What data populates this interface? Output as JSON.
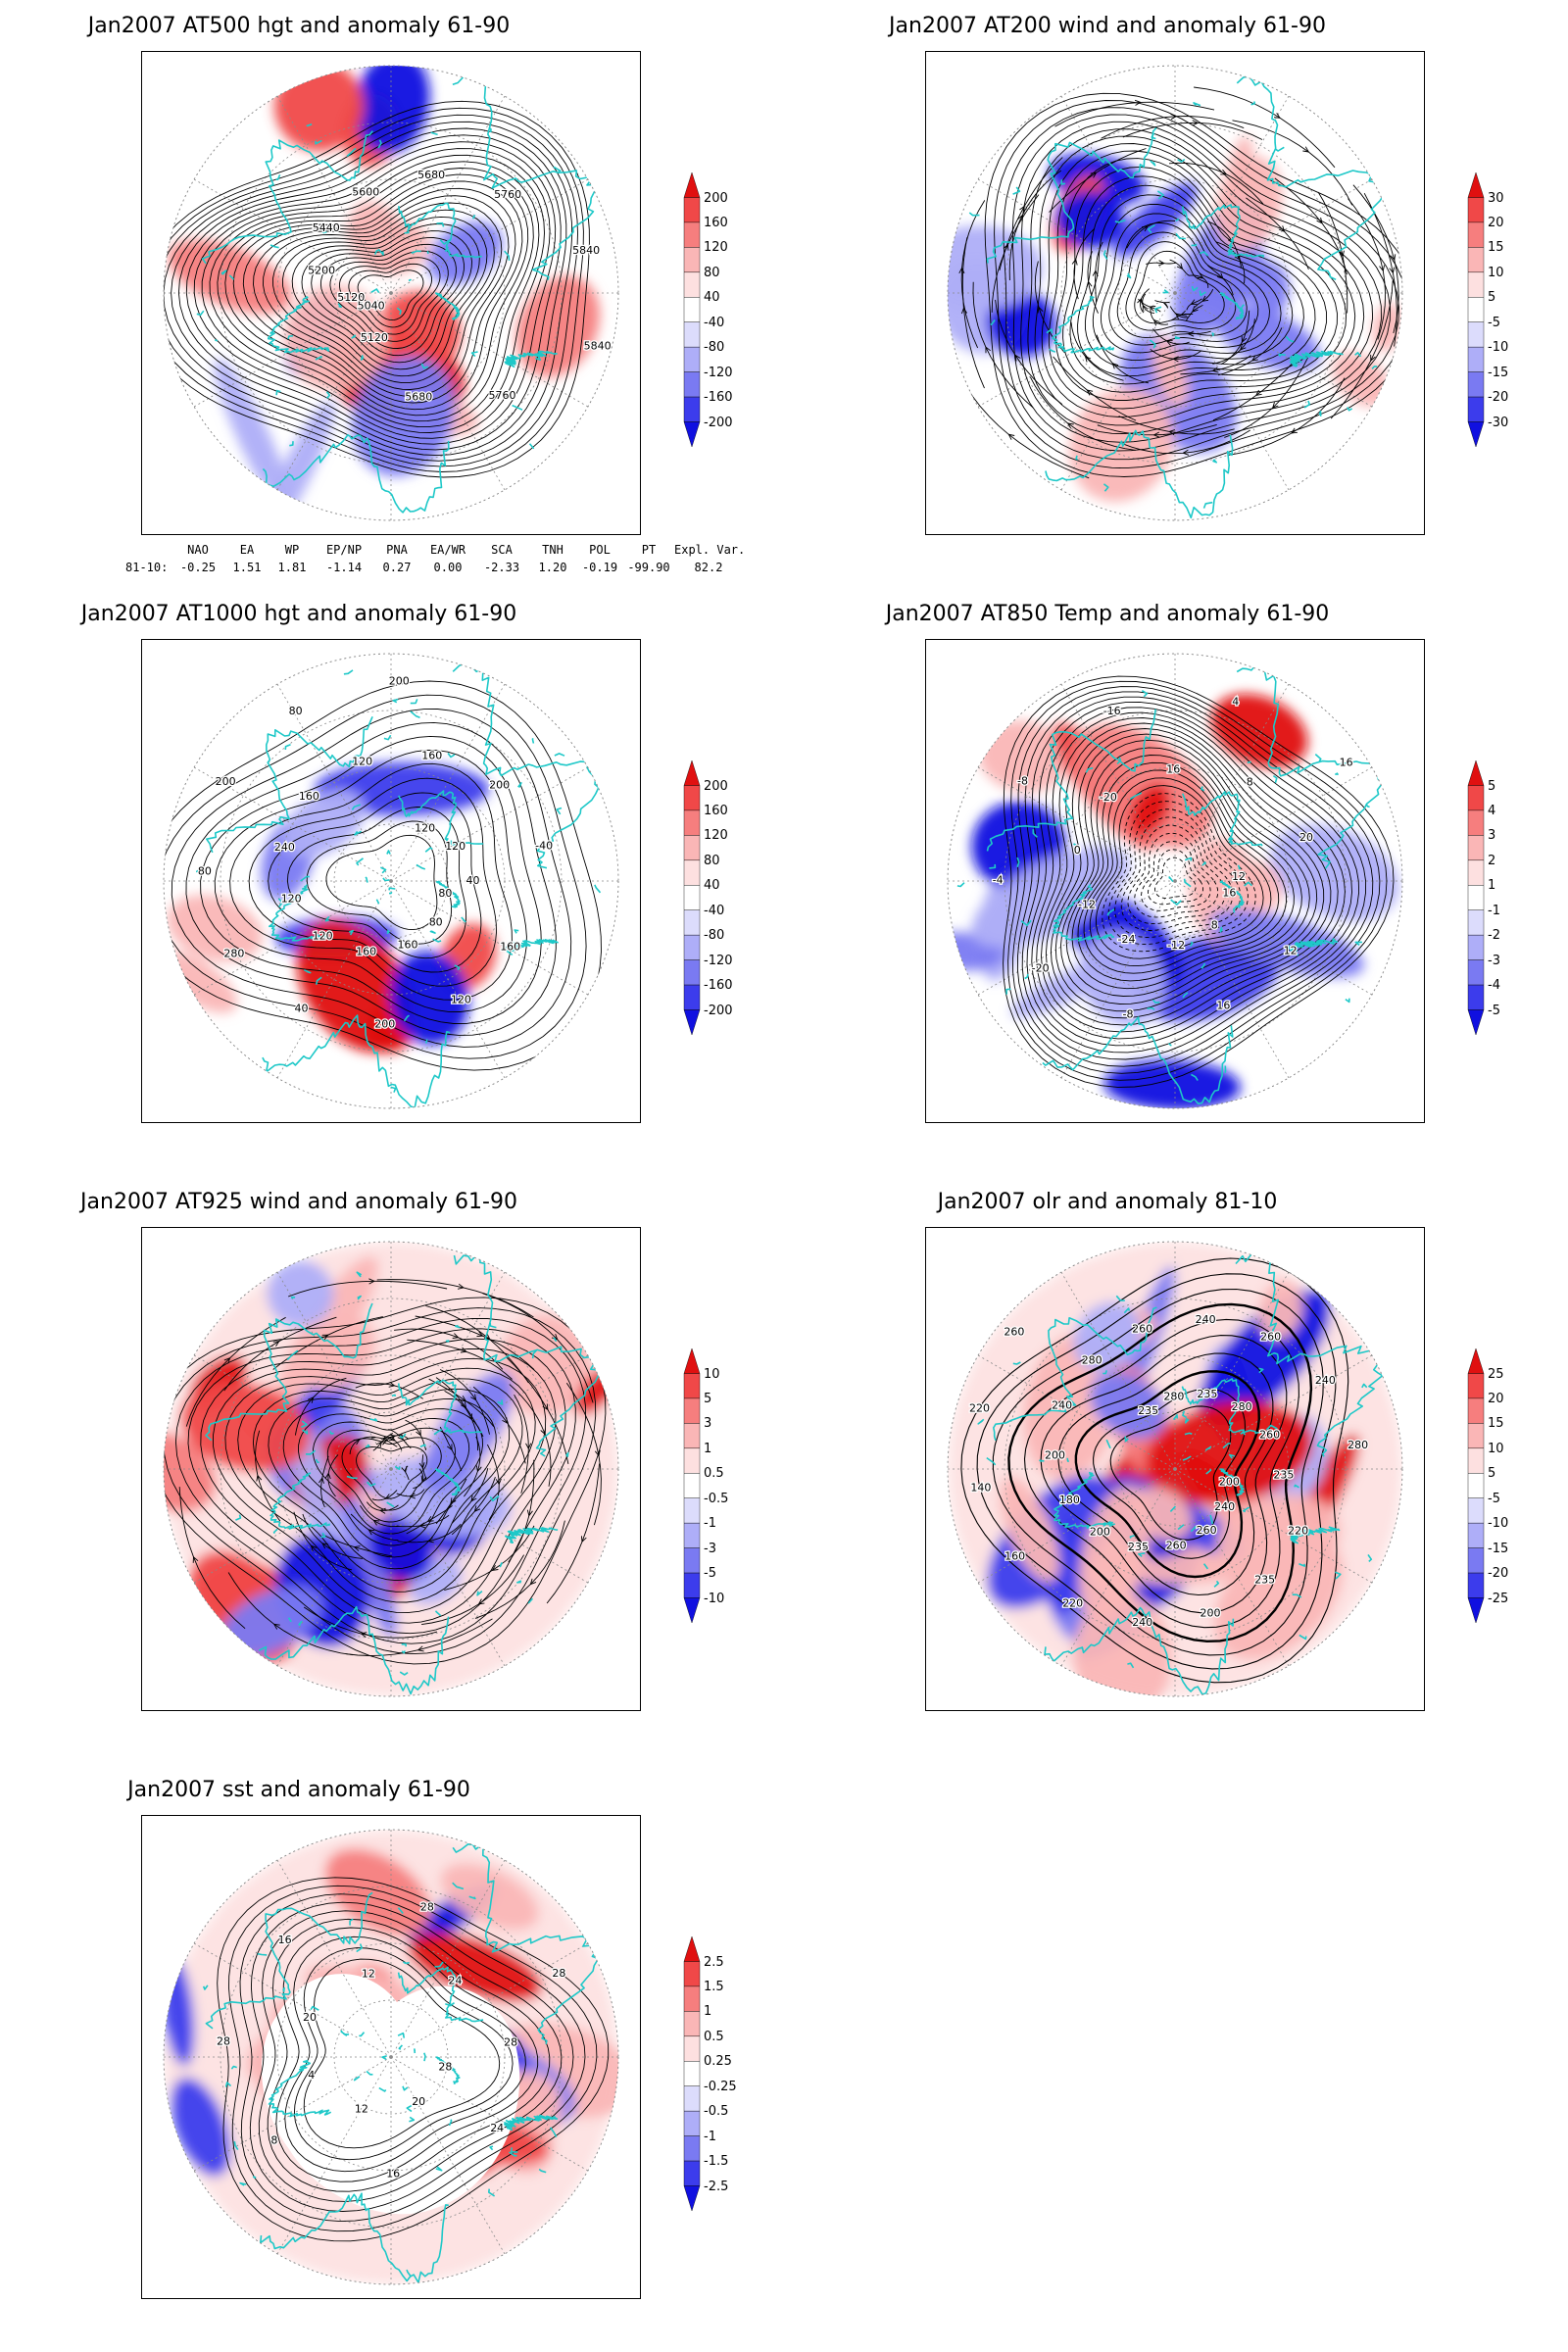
{
  "panels": [
    {
      "id": "at500",
      "title": "Jan2007 AT500 hgt and anomaly 61-90",
      "colorbar": [
        "200",
        "160",
        "120",
        "80",
        "40",
        "-40",
        "-80",
        "-120",
        "-160",
        "-200"
      ],
      "contour_labels": [
        "5840",
        "5760",
        "5680",
        "5120",
        "5040",
        "5120",
        "5200",
        "5440",
        "5600",
        "5680",
        "5760",
        "5840"
      ]
    },
    {
      "id": "at200",
      "title": "Jan2007 AT200 wind and anomaly 61-90",
      "colorbar": [
        "30",
        "20",
        "15",
        "10",
        "5",
        "-5",
        "-10",
        "-15",
        "-20",
        "-30"
      ],
      "contour_labels": []
    },
    {
      "id": "at1000",
      "title": "Jan2007 AT1000 hgt and anomaly 61-90",
      "colorbar": [
        "200",
        "160",
        "120",
        "80",
        "40",
        "-40",
        "-80",
        "-120",
        "-160",
        "-200"
      ],
      "contour_labels": [
        "80",
        "160",
        "80",
        "120",
        "160",
        "200",
        "160",
        "40",
        "120",
        "280",
        "120",
        "80",
        "240",
        "200",
        "160",
        "80",
        "120",
        "200",
        "160",
        "120",
        "200",
        "120",
        "-40",
        "40"
      ]
    },
    {
      "id": "at850",
      "title": "Jan2007 AT850 Temp and anomaly 61-90",
      "colorbar": [
        "5",
        "4",
        "3",
        "2",
        "1",
        "-1",
        "-2",
        "-3",
        "-4",
        "-5"
      ],
      "contour_labels": [
        "16",
        "12",
        "8",
        "16",
        "-12",
        "-8",
        "-24",
        "-20",
        "-12",
        "-4",
        "0",
        "-8",
        "-20",
        "-16",
        "16",
        "4",
        "8",
        "16",
        "20",
        "12"
      ]
    },
    {
      "id": "at925",
      "title": "Jan2007 AT925 wind and anomaly 61-90",
      "colorbar": [
        "10",
        "5",
        "3",
        "1",
        "0.5",
        "-0.5",
        "-1",
        "-3",
        "-5",
        "-10"
      ],
      "contour_labels": []
    },
    {
      "id": "olr",
      "title": "Jan2007 olr and anomaly 81-10",
      "colorbar": [
        "25",
        "20",
        "15",
        "10",
        "5",
        "-5",
        "-10",
        "-15",
        "-20",
        "-25"
      ],
      "contour_labels": [
        "200",
        "220",
        "240",
        "235",
        "260",
        "200",
        "260",
        "240",
        "235",
        "220",
        "200",
        "160",
        "180",
        "140",
        "200",
        "220",
        "240",
        "260",
        "280",
        "235",
        "260",
        "280",
        "240",
        "235",
        "260",
        "280",
        "240",
        "260",
        "280",
        "235"
      ]
    },
    {
      "id": "sst",
      "title": "Jan2007 sst and anomaly 61-90",
      "colorbar": [
        "2.5",
        "1.5",
        "1",
        "0.5",
        "0.25",
        "-0.25",
        "-0.5",
        "-1",
        "-1.5",
        "-2.5"
      ],
      "contour_labels": [
        "28",
        "24",
        "20",
        "16",
        "12",
        "8",
        "4",
        "28",
        "20",
        "16",
        "12",
        "28",
        "24",
        "28",
        "28"
      ]
    }
  ],
  "index_table": {
    "headers": [
      "NAO",
      "EA",
      "WP",
      "EP/NP",
      "PNA",
      "EA/WR",
      "SCA",
      "TNH",
      "POL",
      "PT",
      "Expl. Var."
    ],
    "row_label": "81-10:",
    "values": [
      "-0.25",
      "1.51",
      "1.81",
      "-1.14",
      "0.27",
      "0.00",
      "-2.33",
      "1.20",
      "-0.19",
      "-99.90",
      "82.2"
    ]
  },
  "colors": {
    "coast": "#1ec8c8",
    "contour": "#000000",
    "grid": "#8a8a8a",
    "scale": [
      "#e01010",
      "#f04848",
      "#f67e7e",
      "#fab6b6",
      "#fde0e0",
      "#ffffff",
      "#dcdcfc",
      "#aeaef8",
      "#7a7af2",
      "#3c3cec",
      "#1010e0"
    ]
  }
}
